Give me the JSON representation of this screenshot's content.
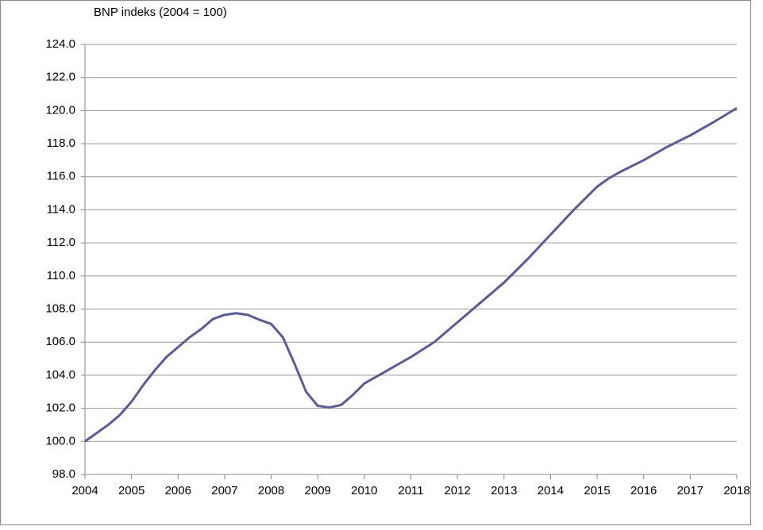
{
  "chart_data": {
    "type": "line",
    "title": "BNP indeks  (2004 = 100)",
    "x": [
      2004,
      2004.25,
      2004.5,
      2004.75,
      2005,
      2005.25,
      2005.5,
      2005.75,
      2006,
      2006.25,
      2006.5,
      2006.75,
      2007,
      2007.25,
      2007.5,
      2007.75,
      2008,
      2008.25,
      2008.5,
      2008.75,
      2009,
      2009.25,
      2009.5,
      2009.75,
      2010,
      2010.5,
      2011,
      2011.5,
      2012,
      2012.5,
      2013,
      2013.5,
      2014,
      2014.5,
      2014.75,
      2015,
      2015.25,
      2015.5,
      2016,
      2016.5,
      2017,
      2017.5,
      2018
    ],
    "series": [
      {
        "name": "BNP indeks",
        "color": "#5b5b96",
        "values": [
          100.0,
          100.5,
          101.0,
          101.6,
          102.4,
          103.4,
          104.3,
          105.1,
          105.7,
          106.3,
          106.8,
          107.4,
          107.65,
          107.75,
          107.65,
          107.35,
          107.1,
          106.3,
          104.7,
          103.0,
          102.15,
          102.05,
          102.2,
          102.8,
          103.5,
          104.3,
          105.1,
          106.0,
          107.2,
          108.4,
          109.6,
          111.0,
          112.5,
          114.0,
          114.7,
          115.4,
          115.9,
          116.3,
          117.0,
          117.8,
          118.5,
          119.3,
          120.15
        ]
      }
    ],
    "xlim": [
      2004,
      2018
    ],
    "xticks": [
      2004,
      2005,
      2006,
      2007,
      2008,
      2009,
      2010,
      2011,
      2012,
      2013,
      2014,
      2015,
      2016,
      2017,
      2018
    ],
    "ylim": [
      98,
      124
    ],
    "yticks": [
      {
        "value": 98,
        "label": "98.0"
      },
      {
        "value": 100,
        "label": "100.0"
      },
      {
        "value": 102,
        "label": "102.0"
      },
      {
        "value": 104,
        "label": "104.0"
      },
      {
        "value": 106,
        "label": "106.0"
      },
      {
        "value": 108,
        "label": "108.0"
      },
      {
        "value": 110,
        "label": "110.0"
      },
      {
        "value": 112,
        "label": "112.0"
      },
      {
        "value": 114,
        "label": "114.0"
      },
      {
        "value": 116,
        "label": "116.0"
      },
      {
        "value": 118,
        "label": "118.0"
      },
      {
        "value": 120,
        "label": "120.0"
      },
      {
        "value": 122,
        "label": "122.0"
      },
      {
        "value": 124,
        "label": "124.0"
      }
    ],
    "grid": true
  }
}
